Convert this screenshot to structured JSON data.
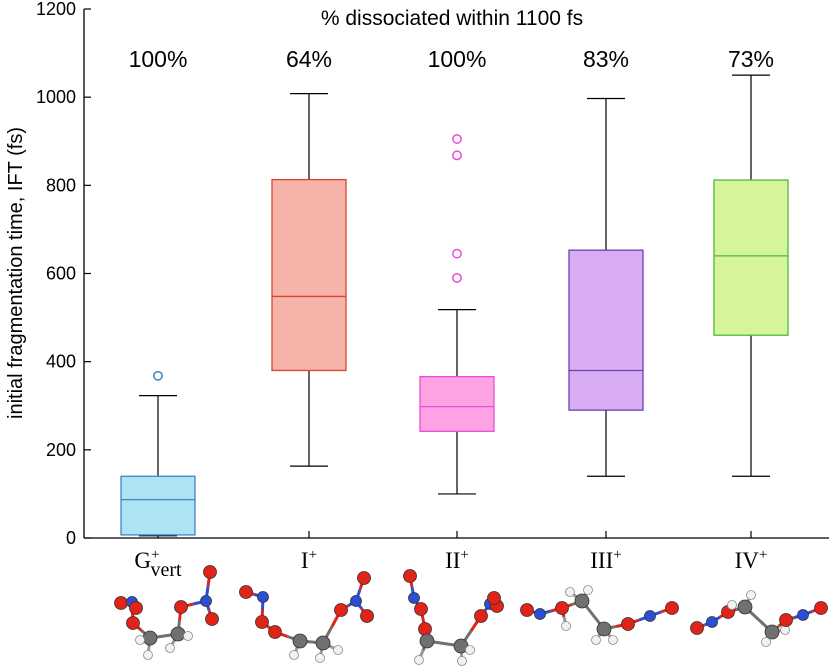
{
  "chart_data": {
    "type": "box",
    "title": "% dissociated within 1100 fs",
    "xlabel": "",
    "ylabel": "initial fragmentation time, IFT (fs)",
    "ylim": [
      0,
      1200
    ],
    "yticks": [
      0,
      200,
      400,
      600,
      800,
      1000,
      1200
    ],
    "grid": false,
    "categories": [
      {
        "label": "G",
        "sup": "+",
        "sub": "vert"
      },
      {
        "label": "I",
        "sup": "+",
        "sub": ""
      },
      {
        "label": "II",
        "sup": "+",
        "sub": ""
      },
      {
        "label": "III",
        "sup": "+",
        "sub": ""
      },
      {
        "label": "IV",
        "sup": "+",
        "sub": ""
      }
    ],
    "percent_labels": [
      "100%",
      "64%",
      "100%",
      "83%",
      "73%"
    ],
    "boxes": [
      {
        "whisker_low": 5,
        "q1": 7,
        "median": 87,
        "q3": 140,
        "whisker_high": 323,
        "outliers": [
          368
        ],
        "stroke": "#3f86c8",
        "fill": "#aee3f3"
      },
      {
        "whisker_low": 163,
        "q1": 380,
        "median": 548,
        "q3": 813,
        "whisker_high": 1008,
        "outliers": [],
        "stroke": "#d9452f",
        "fill": "#f6b3aa"
      },
      {
        "whisker_low": 100,
        "q1": 242,
        "median": 298,
        "q3": 366,
        "whisker_high": 518,
        "outliers": [
          590,
          645,
          868,
          905
        ],
        "stroke": "#ee4bd2",
        "fill": "#fda3e3"
      },
      {
        "whisker_low": 140,
        "q1": 290,
        "median": 380,
        "q3": 653,
        "whisker_high": 997,
        "outliers": [],
        "stroke": "#6f3fb4",
        "fill": "#d8acf1"
      },
      {
        "whisker_low": 140,
        "q1": 460,
        "median": 640,
        "q3": 812,
        "whisker_high": 1050,
        "outliers": [],
        "stroke": "#4fb83c",
        "fill": "#d6f59a"
      }
    ]
  },
  "colors": {
    "oxygen": "#e0241a",
    "nitrogen": "#2a4fd6",
    "carbon": "#707070",
    "hydrogen": "#f2f2f2"
  }
}
